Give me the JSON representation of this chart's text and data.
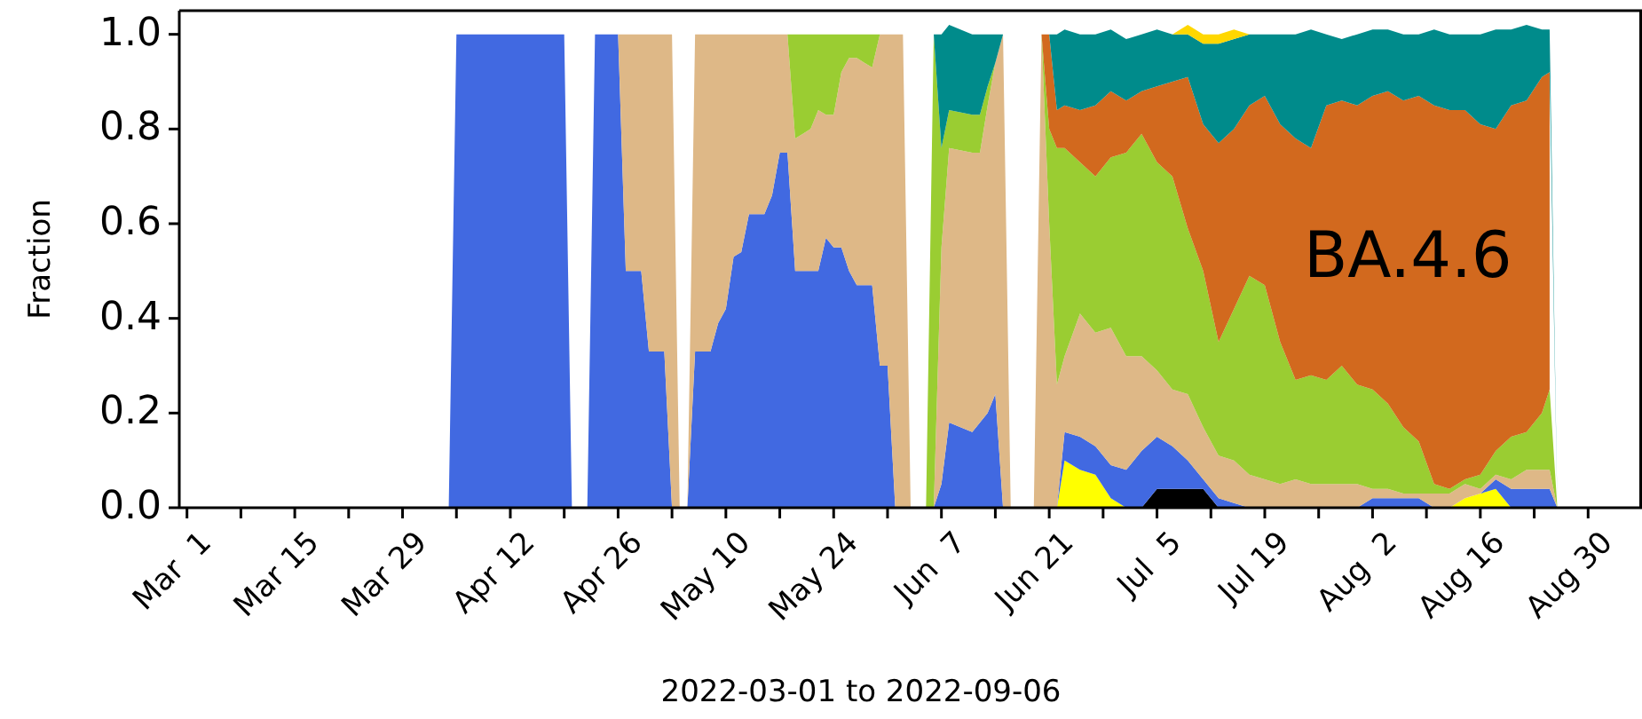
{
  "chart_data": {
    "type": "area",
    "stacked": true,
    "xlabel": "2022-03-01 to 2022-09-06",
    "ylabel": "Fraction",
    "annotations": [
      "BA.4.6"
    ],
    "xlim": [
      "2022-02-28",
      "2022-09-06"
    ],
    "ylim": [
      0,
      1.05
    ],
    "yticks": [
      {
        "value": 0,
        "label": "0.0"
      },
      {
        "value": 0.2,
        "label": "0.2"
      },
      {
        "value": 0.4,
        "label": "0.4"
      },
      {
        "value": 0.6,
        "label": "0.6"
      },
      {
        "value": 0.8,
        "label": "0.8"
      },
      {
        "value": 1,
        "label": "1.0"
      }
    ],
    "xticks": [
      {
        "value": "2022-03-01",
        "label": "Mar  1"
      },
      {
        "value": "2022-03-08",
        "label": null
      },
      {
        "value": "2022-03-15",
        "label": "Mar 15"
      },
      {
        "value": "2022-03-22",
        "label": null
      },
      {
        "value": "2022-03-29",
        "label": "Mar 29"
      },
      {
        "value": "2022-04-05",
        "label": null
      },
      {
        "value": "2022-04-12",
        "label": "Apr 12"
      },
      {
        "value": "2022-04-19",
        "label": null
      },
      {
        "value": "2022-04-26",
        "label": "Apr 26"
      },
      {
        "value": "2022-05-03",
        "label": null
      },
      {
        "value": "2022-05-10",
        "label": "May 10"
      },
      {
        "value": "2022-05-17",
        "label": null
      },
      {
        "value": "2022-05-24",
        "label": "May 24"
      },
      {
        "value": "2022-05-31",
        "label": null
      },
      {
        "value": "2022-06-07",
        "label": "Jun  7"
      },
      {
        "value": "2022-06-14",
        "label": null
      },
      {
        "value": "2022-06-21",
        "label": "Jun 21"
      },
      {
        "value": "2022-06-28",
        "label": null
      },
      {
        "value": "2022-07-05",
        "label": "Jul  5"
      },
      {
        "value": "2022-07-12",
        "label": null
      },
      {
        "value": "2022-07-19",
        "label": "Jul 19"
      },
      {
        "value": "2022-07-26",
        "label": null
      },
      {
        "value": "2022-08-02",
        "label": "Aug  2"
      },
      {
        "value": "2022-08-09",
        "label": null
      },
      {
        "value": "2022-08-16",
        "label": "Aug 16"
      },
      {
        "value": "2022-08-23",
        "label": null
      },
      {
        "value": "2022-08-30",
        "label": "Aug 30"
      }
    ],
    "x": [
      "2022-04-04",
      "2022-04-05",
      "2022-04-19",
      "2022-04-20",
      "2022-04-22",
      "2022-04-23",
      "2022-04-26",
      "2022-04-27",
      "2022-04-29",
      "2022-04-30",
      "2022-05-02",
      "2022-05-03",
      "2022-05-04",
      "2022-05-05",
      "2022-05-06",
      "2022-05-08",
      "2022-05-09",
      "2022-05-10",
      "2022-05-11",
      "2022-05-12",
      "2022-05-13",
      "2022-05-15",
      "2022-05-16",
      "2022-05-17",
      "2022-05-18",
      "2022-05-19",
      "2022-05-20",
      "2022-05-21",
      "2022-05-22",
      "2022-05-23",
      "2022-05-24",
      "2022-05-25",
      "2022-05-26",
      "2022-05-27",
      "2022-05-28",
      "2022-05-29",
      "2022-05-30",
      "2022-05-31",
      "2022-06-01",
      "2022-06-02",
      "2022-06-03",
      "2022-06-05",
      "2022-06-06",
      "2022-06-07",
      "2022-06-08",
      "2022-06-11",
      "2022-06-12",
      "2022-06-13",
      "2022-06-14",
      "2022-06-15",
      "2022-06-16",
      "2022-06-19",
      "2022-06-20",
      "2022-06-21",
      "2022-06-22",
      "2022-06-23",
      "2022-06-25",
      "2022-06-27",
      "2022-06-29",
      "2022-07-01",
      "2022-07-03",
      "2022-07-05",
      "2022-07-07",
      "2022-07-09",
      "2022-07-11",
      "2022-07-13",
      "2022-07-15",
      "2022-07-17",
      "2022-07-19",
      "2022-07-21",
      "2022-07-23",
      "2022-07-25",
      "2022-07-27",
      "2022-07-29",
      "2022-07-31",
      "2022-08-02",
      "2022-08-04",
      "2022-08-06",
      "2022-08-08",
      "2022-08-10",
      "2022-08-12",
      "2022-08-14",
      "2022-08-16",
      "2022-08-18",
      "2022-08-20",
      "2022-08-22",
      "2022-08-24",
      "2022-08-25",
      "2022-08-26"
    ],
    "series": [
      {
        "color": "#ffff00",
        "values": [
          null,
          null,
          null,
          null,
          null,
          null,
          null,
          null,
          null,
          null,
          null,
          null,
          null,
          null,
          null,
          null,
          null,
          null,
          null,
          null,
          null,
          null,
          null,
          null,
          null,
          null,
          null,
          null,
          null,
          null,
          null,
          null,
          null,
          null,
          null,
          null,
          null,
          null,
          null,
          null,
          null,
          null,
          null,
          null,
          null,
          null,
          null,
          null,
          null,
          null,
          null,
          null,
          null,
          null,
          0,
          0.1,
          0.08,
          0.07,
          0.02,
          0,
          null,
          null,
          null,
          null,
          null,
          null,
          null,
          null,
          null,
          null,
          null,
          null,
          null,
          null,
          null,
          null,
          null,
          null,
          null,
          null,
          0,
          0.02,
          0.03,
          0.04,
          0,
          null,
          null,
          null,
          null
        ]
      },
      {
        "color": "#000000",
        "values": [
          null,
          null,
          null,
          null,
          null,
          null,
          null,
          null,
          null,
          null,
          null,
          null,
          null,
          null,
          null,
          null,
          null,
          null,
          null,
          null,
          null,
          null,
          null,
          null,
          null,
          null,
          null,
          null,
          null,
          null,
          null,
          null,
          null,
          null,
          null,
          null,
          null,
          null,
          null,
          null,
          null,
          null,
          null,
          null,
          null,
          null,
          null,
          null,
          null,
          null,
          null,
          null,
          null,
          null,
          null,
          null,
          null,
          null,
          null,
          null,
          0,
          0.04,
          0.04,
          0.04,
          0.04,
          0,
          null,
          null,
          null,
          null,
          null,
          null,
          null,
          null,
          null,
          null,
          null,
          null,
          null,
          null,
          null,
          null,
          null,
          null,
          null,
          null,
          null,
          null,
          null
        ]
      },
      {
        "color": "#4169e1",
        "values": [
          0,
          1,
          1,
          0,
          0,
          1,
          1,
          0.5,
          0.5,
          0.33,
          0.33,
          0,
          null,
          0,
          0.33,
          0.33,
          0.39,
          0.42,
          0.53,
          0.54,
          0.62,
          0.62,
          0.66,
          0.75,
          0.75,
          0.5,
          0.5,
          0.5,
          0.5,
          0.57,
          0.55,
          0.55,
          0.5,
          0.47,
          0.47,
          0.47,
          0.3,
          0.3,
          0,
          null,
          null,
          null,
          0,
          0.05,
          0.18,
          0.16,
          0.18,
          0.2,
          0.24,
          0,
          null,
          null,
          null,
          null,
          0,
          0.06,
          0.07,
          0.06,
          0.07,
          0.08,
          0.12,
          0.11,
          0.09,
          0.06,
          0.02,
          0.02,
          0.01,
          0,
          null,
          null,
          null,
          null,
          null,
          null,
          0,
          0.02,
          0.02,
          0.02,
          0.02,
          0,
          null,
          null,
          0,
          0.02,
          0.04,
          0.04,
          0.04,
          0.04,
          0
        ]
      },
      {
        "color": "#deb887",
        "values": [
          null,
          null,
          null,
          null,
          null,
          null,
          0,
          0.5,
          0.5,
          0.67,
          0.67,
          1,
          0,
          0,
          0.67,
          0.67,
          0.61,
          0.58,
          0.47,
          0.46,
          0.38,
          0.38,
          0.34,
          0.25,
          0.25,
          0.28,
          0.29,
          0.3,
          0.34,
          0.26,
          0.28,
          0.37,
          0.45,
          0.48,
          0.47,
          0.46,
          0.7,
          0.7,
          1,
          1,
          0,
          null,
          0,
          0.5,
          0.58,
          0.59,
          0.57,
          0.65,
          0.7,
          1,
          0,
          0,
          1,
          0.6,
          0.26,
          0.16,
          0.26,
          0.24,
          0.29,
          0.24,
          0.2,
          0.14,
          0.12,
          0.14,
          0.11,
          0.09,
          0.09,
          0.07,
          0.06,
          0.05,
          0.06,
          0.05,
          0.05,
          0.05,
          0.05,
          0.02,
          0.02,
          0.01,
          0.01,
          0.03,
          0.03,
          0.03,
          0.01,
          0.01,
          0.02,
          0.04,
          0.04,
          0.04,
          0
        ]
      },
      {
        "color": "#9acd32",
        "values": [
          null,
          null,
          null,
          null,
          null,
          null,
          null,
          null,
          null,
          null,
          null,
          null,
          null,
          null,
          null,
          null,
          null,
          null,
          null,
          null,
          null,
          null,
          null,
          null,
          0,
          0.22,
          0.21,
          0.2,
          0.16,
          0.17,
          0.17,
          0.08,
          0.05,
          0.05,
          0.06,
          0.07,
          0,
          null,
          null,
          null,
          null,
          0,
          1,
          0.21,
          0.08,
          0.08,
          0.08,
          0.04,
          0,
          null,
          null,
          null,
          0,
          0.2,
          0.5,
          0.44,
          0.32,
          0.33,
          0.36,
          0.43,
          0.47,
          0.44,
          0.45,
          0.35,
          0.33,
          0.24,
          0.32,
          0.42,
          0.41,
          0.3,
          0.21,
          0.23,
          0.22,
          0.25,
          0.21,
          0.21,
          0.18,
          0.14,
          0.11,
          0.02,
          0.01,
          0.01,
          0.03,
          0.05,
          0.09,
          0.08,
          0.12,
          0.17,
          0
        ]
      },
      {
        "color": "#d2691e",
        "values": [
          null,
          null,
          null,
          null,
          null,
          null,
          null,
          null,
          null,
          null,
          null,
          null,
          null,
          null,
          null,
          null,
          null,
          null,
          null,
          null,
          null,
          null,
          null,
          null,
          null,
          null,
          null,
          null,
          null,
          null,
          null,
          null,
          null,
          null,
          null,
          null,
          null,
          null,
          null,
          null,
          null,
          null,
          null,
          null,
          null,
          null,
          null,
          null,
          null,
          null,
          null,
          null,
          0,
          0.2,
          0.08,
          0.09,
          0.11,
          0.15,
          0.14,
          0.11,
          0.09,
          0.16,
          0.2,
          0.32,
          0.31,
          0.42,
          0.38,
          0.36,
          0.4,
          0.46,
          0.51,
          0.48,
          0.58,
          0.56,
          0.59,
          0.62,
          0.66,
          0.69,
          0.73,
          0.8,
          0.8,
          0.78,
          0.74,
          0.68,
          0.7,
          0.7,
          0.71,
          0.67,
          null
        ]
      },
      {
        "color": "#008b8b",
        "values": [
          null,
          null,
          null,
          null,
          null,
          null,
          null,
          null,
          null,
          null,
          null,
          null,
          null,
          null,
          null,
          null,
          null,
          null,
          null,
          null,
          null,
          null,
          null,
          null,
          null,
          null,
          null,
          null,
          null,
          null,
          null,
          null,
          null,
          null,
          null,
          null,
          null,
          null,
          null,
          null,
          null,
          null,
          0,
          0.24,
          0.18,
          0.17,
          0.17,
          0.11,
          0.06,
          0,
          null,
          null,
          null,
          0,
          0.16,
          0.16,
          0.16,
          0.15,
          0.13,
          0.13,
          0.12,
          0.12,
          0.1,
          0.09,
          0.17,
          0.21,
          0.19,
          0.15,
          0.13,
          0.19,
          0.22,
          0.25,
          0.15,
          0.13,
          0.15,
          0.14,
          0.13,
          0.14,
          0.13,
          0.16,
          0.16,
          0.16,
          0.19,
          0.21,
          0.16,
          0.16,
          0.1,
          0.09,
          0
        ]
      },
      {
        "color": "#ffd700",
        "values": [
          null,
          null,
          null,
          null,
          null,
          null,
          null,
          null,
          null,
          null,
          null,
          null,
          null,
          null,
          null,
          null,
          null,
          null,
          null,
          null,
          null,
          null,
          null,
          null,
          null,
          null,
          null,
          null,
          null,
          null,
          null,
          null,
          null,
          null,
          null,
          null,
          null,
          null,
          null,
          null,
          null,
          null,
          null,
          null,
          null,
          null,
          null,
          null,
          null,
          null,
          null,
          null,
          null,
          null,
          null,
          null,
          null,
          null,
          null,
          null,
          null,
          null,
          0,
          0.02,
          0.02,
          0.02,
          0.02,
          0,
          null,
          null,
          null,
          null,
          null,
          null,
          null,
          null,
          null,
          null,
          null,
          null,
          null,
          null,
          null,
          null,
          null,
          null,
          null,
          null,
          null
        ]
      }
    ]
  }
}
